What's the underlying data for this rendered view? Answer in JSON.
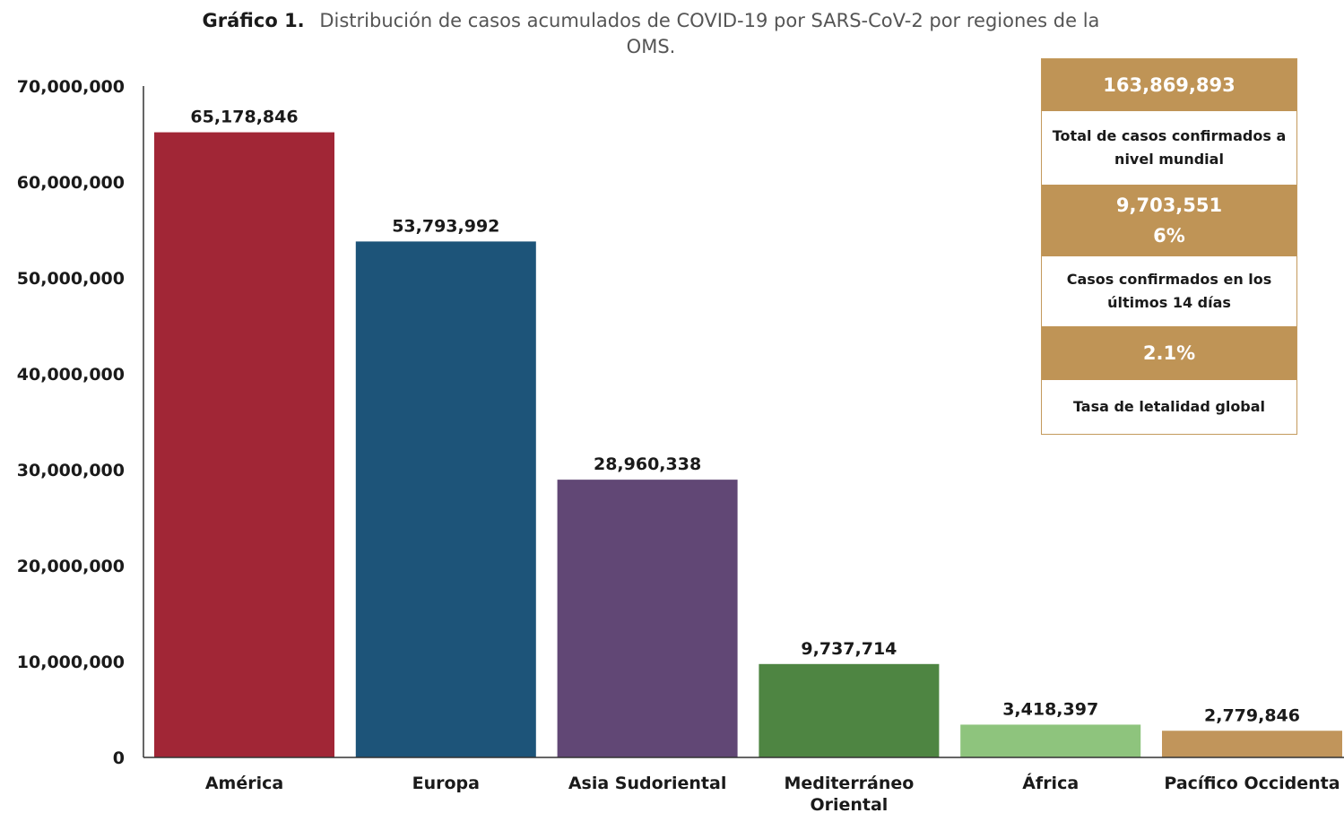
{
  "title": {
    "prefix": "Gráfico 1.",
    "line1": "Distribución de casos acumulados de COVID-19 por SARS-CoV-2 por regiones de la",
    "line2": "OMS."
  },
  "chart_data": {
    "type": "bar",
    "title": "Gráfico 1. Distribución de casos acumulados de COVID-19 por SARS-CoV-2 por regiones de la OMS.",
    "categories": [
      [
        "América"
      ],
      [
        "Europa"
      ],
      [
        "Asia Sudoriental"
      ],
      [
        "Mediterráneo",
        "Oriental"
      ],
      [
        "África"
      ],
      [
        "Pacífico Occidenta"
      ]
    ],
    "values": [
      65178846,
      53793992,
      28960338,
      9737714,
      3418397,
      2779846
    ],
    "value_labels": [
      "65,178,846",
      "53,793,992",
      "28,960,338",
      "9,737,714",
      "3,418,397",
      "2,779,846"
    ],
    "colors": [
      "#a12636",
      "#1d5479",
      "#614775",
      "#4e8542",
      "#8ec47d",
      "#c1955b"
    ],
    "ylim": [
      0,
      70000000
    ],
    "yticks": [
      0,
      10000000,
      20000000,
      30000000,
      40000000,
      50000000,
      60000000,
      70000000
    ],
    "ytick_labels": [
      "0",
      "10,000,000",
      "20,000,000",
      "30,000,000",
      "40,000,000",
      "50,000,000",
      "60,000,000",
      "70,000,000"
    ],
    "xlabel": "",
    "ylabel": "",
    "grid": false
  },
  "summary_panel": {
    "total_value": "163,869,893",
    "total_label": "Total de casos confirmados a nivel mundial",
    "recent_value": "9,703,551",
    "recent_percent": "6%",
    "recent_label": "Casos confirmados en los últimos 14 días",
    "lethality_value": "2.1%",
    "lethality_label": "Tasa de letalidad global"
  }
}
